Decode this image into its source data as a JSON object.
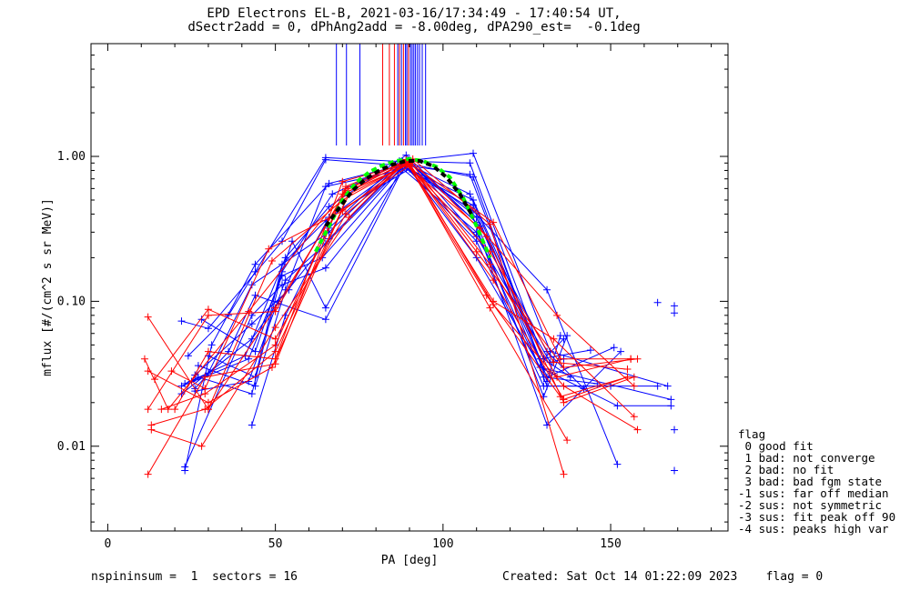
{
  "title_line1": "EPD Electrons EL-B, 2021-03-16/17:34:49 - 17:40:54 UT,",
  "title_line2": "dSectr2add = 0, dPhAng2add = -8.00deg, dPA290_est=  -0.1deg",
  "footer": {
    "left": "nspininsum =  1  sectors = 16",
    "right": "Created: Sat Oct 14 01:22:09 2023    flag = 0"
  },
  "legend": {
    "title": "flag",
    "items": [
      " 0 good fit",
      " 1 bad: not converge",
      " 2 bad: no fit",
      " 3 bad: bad fgm state",
      "-1 sus: far off median",
      "-2 sus: not symmetric",
      "-3 sus: fit peak off 90",
      "-4 sus: peaks high var"
    ]
  },
  "colors": {
    "blue": "#0000ff",
    "red": "#ff0000",
    "green": "#00ff00",
    "black": "#000000"
  },
  "chart_data": {
    "type": "line",
    "title": "EPD Electrons EL-B, 2021-03-16/17:34:49 - 17:40:54 UT,",
    "xlabel": "PA [deg]",
    "ylabel": "mflux [#/(cm^2 s sr MeV)]",
    "xlim": [
      -5,
      185
    ],
    "ylim": [
      0.0026,
      6
    ],
    "yscale": "log",
    "xticks": [
      0,
      50,
      100,
      150
    ],
    "yticks": [
      {
        "v": 0.01,
        "label": "0.01"
      },
      {
        "v": 0.1,
        "label": "0.10"
      },
      {
        "v": 1.0,
        "label": "1.00"
      }
    ],
    "vertical_markers": [
      {
        "x": 68.2,
        "color": "blue"
      },
      {
        "x": 71.2,
        "color": "blue"
      },
      {
        "x": 75.2,
        "color": "blue"
      },
      {
        "x": 82.0,
        "color": "red"
      },
      {
        "x": 84.0,
        "color": "red"
      },
      {
        "x": 85.5,
        "color": "red"
      },
      {
        "x": 86.5,
        "color": "blue"
      },
      {
        "x": 87.0,
        "color": "red"
      },
      {
        "x": 87.6,
        "color": "blue"
      },
      {
        "x": 88.2,
        "color": "red"
      },
      {
        "x": 88.8,
        "color": "blue"
      },
      {
        "x": 89.2,
        "color": "blue"
      },
      {
        "x": 89.7,
        "color": "red"
      },
      {
        "x": 90.3,
        "color": "blue"
      },
      {
        "x": 90.8,
        "color": "blue"
      },
      {
        "x": 91.3,
        "color": "blue"
      },
      {
        "x": 91.8,
        "color": "blue"
      },
      {
        "x": 92.4,
        "color": "blue"
      },
      {
        "x": 93.0,
        "color": "blue"
      },
      {
        "x": 93.8,
        "color": "blue"
      },
      {
        "x": 94.8,
        "color": "blue"
      }
    ],
    "series": [
      {
        "color": "blue",
        "points": [
          [
            22,
            0.073
          ],
          [
            30,
            0.065
          ],
          [
            52,
            0.26
          ],
          [
            65,
            0.95
          ],
          [
            89,
            0.86
          ],
          [
            109,
            0.42
          ],
          [
            131,
            0.12
          ],
          [
            152,
            0.0075
          ]
        ]
      },
      {
        "color": "blue",
        "points": [
          [
            23,
            0.0068
          ],
          [
            31,
            0.05
          ],
          [
            44,
            0.18
          ],
          [
            66,
            0.65
          ],
          [
            90,
            0.9
          ],
          [
            110,
            0.38
          ],
          [
            131,
            0.03
          ],
          [
            151,
            0.048
          ]
        ]
      },
      {
        "color": "blue",
        "points": [
          [
            24,
            0.042
          ],
          [
            36,
            0.08
          ],
          [
            44,
            0.16
          ],
          [
            65,
            0.98
          ],
          [
            88,
            0.92
          ],
          [
            108,
            0.55
          ],
          [
            129,
            0.04
          ],
          [
            144,
            0.046
          ]
        ]
      },
      {
        "color": "blue",
        "points": [
          [
            25,
            0.028
          ],
          [
            30,
            0.032
          ],
          [
            43,
            0.13
          ],
          [
            66,
            0.3
          ],
          [
            87,
            0.88
          ],
          [
            108,
            0.75
          ],
          [
            130,
            0.034
          ],
          [
            152,
            0.019
          ],
          [
            168,
            0.019
          ]
        ]
      },
      {
        "color": "blue",
        "points": [
          [
            26,
            0.025
          ],
          [
            36,
            0.045
          ],
          [
            44,
            0.11
          ],
          [
            65,
            0.075
          ],
          [
            88,
            0.82
          ],
          [
            110,
            0.3
          ],
          [
            130,
            0.03
          ],
          [
            146,
            0.027
          ]
        ]
      },
      {
        "color": "blue",
        "points": [
          [
            27,
            0.03
          ],
          [
            43,
            0.023
          ],
          [
            52,
            0.16
          ],
          [
            67,
            0.55
          ],
          [
            90,
            0.95
          ],
          [
            110,
            0.28
          ],
          [
            132,
            0.038
          ],
          [
            136,
            0.04
          ]
        ]
      },
      {
        "color": "blue",
        "points": [
          [
            23,
            0.027
          ],
          [
            41,
            0.042
          ],
          [
            53,
            0.2
          ],
          [
            66,
            0.45
          ],
          [
            89,
            1.02
          ],
          [
            111,
            0.33
          ],
          [
            131,
            0.045
          ],
          [
            142,
            0.025
          ]
        ]
      },
      {
        "color": "blue",
        "points": [
          [
            28,
            0.075
          ],
          [
            44,
            0.045
          ],
          [
            55,
            0.26
          ],
          [
            65,
            0.09
          ],
          [
            88,
            0.86
          ],
          [
            109,
            0.5
          ],
          [
            130,
            0.04
          ],
          [
            136,
            0.055
          ]
        ]
      },
      {
        "color": "blue",
        "points": [
          [
            22,
            0.026
          ],
          [
            42,
            0.04
          ],
          [
            52,
            0.15
          ],
          [
            64,
            0.2
          ],
          [
            89,
            0.9
          ],
          [
            109,
            0.72
          ],
          [
            131,
            0.028
          ],
          [
            135,
            0.058
          ]
        ]
      },
      {
        "color": "blue",
        "points": [
          [
            26,
            0.024
          ],
          [
            42,
            0.028
          ],
          [
            53,
            0.14
          ],
          [
            65,
            0.25
          ],
          [
            88,
            0.85
          ],
          [
            108,
            0.44
          ],
          [
            131,
            0.014
          ],
          [
            153,
            0.045
          ]
        ]
      },
      {
        "color": "blue",
        "points": [
          [
            23,
            0.0072
          ],
          [
            43,
            0.08
          ],
          [
            52,
            0.13
          ],
          [
            65,
            0.17
          ],
          [
            90,
            0.9
          ],
          [
            110,
            0.35
          ],
          [
            130,
            0.022
          ],
          [
            137,
            0.058
          ]
        ]
      },
      {
        "color": "blue",
        "points": [
          [
            27,
            0.036
          ],
          [
            44,
            0.026
          ],
          [
            53,
            0.12
          ],
          [
            65,
            0.62
          ],
          [
            89,
            0.82
          ],
          [
            109,
            0.46
          ],
          [
            131,
            0.026
          ],
          [
            164,
            0.026
          ]
        ]
      },
      {
        "color": "blue",
        "points": [
          [
            22,
            0.023
          ],
          [
            43,
            0.055
          ],
          [
            51,
            0.1
          ],
          [
            66,
            0.27
          ],
          [
            89,
            0.93
          ],
          [
            109,
            1.05
          ],
          [
            132,
            0.045
          ],
          [
            167,
            0.026
          ]
        ]
      },
      {
        "color": "blue",
        "points": [
          [
            43,
            0.014
          ],
          [
            53,
            0.08
          ],
          [
            66,
            0.32
          ],
          [
            87,
            0.93
          ],
          [
            108,
            0.9
          ],
          [
            130,
            0.04
          ],
          [
            138,
            0.03
          ]
        ]
      },
      {
        "color": "blue",
        "points": [
          [
            26,
            0.031
          ],
          [
            43,
            0.07
          ],
          [
            54,
            0.12
          ],
          [
            66,
            0.38
          ],
          [
            90,
            0.82
          ],
          [
            110,
            0.2
          ],
          [
            129,
            0.035
          ],
          [
            168,
            0.021
          ]
        ]
      },
      {
        "color": "blue",
        "points": [
          [
            30,
            0.042
          ],
          [
            44,
            0.03
          ],
          [
            52,
            0.18
          ],
          [
            65,
            0.36
          ],
          [
            88,
            0.89
          ],
          [
            110,
            0.26
          ],
          [
            130,
            0.026
          ],
          [
            150,
            0.026
          ]
        ]
      },
      {
        "color": "red",
        "points": [
          [
            12,
            0.078
          ],
          [
            30,
            0.018
          ],
          [
            49,
            0.19
          ],
          [
            70,
            0.5
          ],
          [
            89,
            0.87
          ],
          [
            111,
            0.32
          ],
          [
            134,
            0.08
          ],
          [
            157,
            0.026
          ]
        ]
      },
      {
        "color": "red",
        "points": [
          [
            11,
            0.04
          ],
          [
            18,
            0.018
          ],
          [
            42,
            0.085
          ],
          [
            70,
            0.55
          ],
          [
            90,
            0.88
          ],
          [
            110,
            0.22
          ],
          [
            136,
            0.035
          ],
          [
            158,
            0.04
          ]
        ]
      },
      {
        "color": "red",
        "points": [
          [
            12,
            0.0064
          ],
          [
            29,
            0.03
          ],
          [
            50,
            0.037
          ],
          [
            71,
            0.62
          ],
          [
            91,
            0.96
          ],
          [
            114,
            0.34
          ],
          [
            136,
            0.0064
          ]
        ]
      },
      {
        "color": "red",
        "points": [
          [
            12,
            0.033
          ],
          [
            30,
            0.02
          ],
          [
            49,
            0.035
          ],
          [
            70,
            0.43
          ],
          [
            90,
            0.86
          ],
          [
            115,
            0.1
          ],
          [
            133,
            0.055
          ],
          [
            157,
            0.016
          ]
        ]
      },
      {
        "color": "red",
        "points": [
          [
            13,
            0.014
          ],
          [
            29,
            0.018
          ],
          [
            50,
            0.045
          ],
          [
            72,
            0.55
          ],
          [
            90,
            0.9
          ],
          [
            115,
            0.095
          ],
          [
            136,
            0.026
          ],
          [
            158,
            0.013
          ]
        ]
      },
      {
        "color": "red",
        "points": [
          [
            14,
            0.029
          ],
          [
            30,
            0.088
          ],
          [
            50,
            0.055
          ],
          [
            71,
            0.4
          ],
          [
            89,
            0.9
          ],
          [
            114,
            0.22
          ],
          [
            133,
            0.038
          ],
          [
            155,
            0.034
          ]
        ]
      },
      {
        "color": "red",
        "points": [
          [
            16,
            0.018
          ],
          [
            29,
            0.023
          ],
          [
            50,
            0.05
          ],
          [
            71,
            0.6
          ],
          [
            90,
            0.9
          ],
          [
            115,
            0.35
          ],
          [
            135,
            0.04
          ],
          [
            156,
            0.04
          ]
        ]
      },
      {
        "color": "red",
        "points": [
          [
            13,
            0.013
          ],
          [
            28,
            0.01
          ],
          [
            50,
            0.066
          ],
          [
            72,
            0.38
          ],
          [
            89,
            0.95
          ],
          [
            114,
            0.09
          ],
          [
            137,
            0.011
          ]
        ]
      },
      {
        "color": "red",
        "points": [
          [
            20,
            0.018
          ],
          [
            30,
            0.045
          ],
          [
            50,
            0.04
          ],
          [
            70,
            0.67
          ],
          [
            91,
            0.92
          ],
          [
            113,
            0.28
          ],
          [
            136,
            0.02
          ],
          [
            157,
            0.03
          ]
        ]
      },
      {
        "color": "red",
        "points": [
          [
            30,
            0.018
          ],
          [
            50,
            0.09
          ],
          [
            71,
            0.56
          ],
          [
            89,
            0.92
          ],
          [
            113,
            0.11
          ],
          [
            135,
            0.022
          ],
          [
            155,
            0.03
          ]
        ]
      },
      {
        "color": "red",
        "points": [
          [
            19,
            0.033
          ],
          [
            29,
            0.025
          ],
          [
            48,
            0.23
          ],
          [
            70,
            0.42
          ],
          [
            90,
            0.93
          ],
          [
            114,
            0.18
          ],
          [
            134,
            0.03
          ],
          [
            156,
            0.04
          ]
        ]
      },
      {
        "color": "red",
        "points": [
          [
            12,
            0.018
          ],
          [
            30,
            0.08
          ],
          [
            50,
            0.085
          ],
          [
            71,
            0.58
          ],
          [
            89,
            0.95
          ],
          [
            115,
            0.14
          ],
          [
            136,
            0.021
          ],
          [
            155,
            0.03
          ]
        ]
      }
    ],
    "isolated_points": [
      {
        "color": "blue",
        "points": [
          [
            164,
            0.098
          ],
          [
            169,
            0.093
          ],
          [
            169,
            0.083
          ],
          [
            169,
            0.013
          ],
          [
            169,
            0.0068
          ]
        ]
      }
    ],
    "fit_curves": [
      {
        "color": "green",
        "style": "dashed",
        "points": [
          [
            62,
            0.22
          ],
          [
            66,
            0.33
          ],
          [
            70,
            0.5
          ],
          [
            74,
            0.66
          ],
          [
            78,
            0.78
          ],
          [
            82,
            0.87
          ],
          [
            86,
            0.93
          ],
          [
            90,
            0.96
          ],
          [
            94,
            0.93
          ],
          [
            98,
            0.85
          ],
          [
            102,
            0.72
          ],
          [
            106,
            0.52
          ],
          [
            110,
            0.33
          ],
          [
            114,
            0.2
          ]
        ]
      },
      {
        "color": "black",
        "style": "dashed",
        "points": [
          [
            65,
            0.33
          ],
          [
            69,
            0.44
          ],
          [
            73,
            0.58
          ],
          [
            77,
            0.7
          ],
          [
            81,
            0.8
          ],
          [
            85,
            0.88
          ],
          [
            89,
            0.93
          ],
          [
            93,
            0.93
          ],
          [
            97,
            0.86
          ],
          [
            101,
            0.72
          ],
          [
            105,
            0.55
          ],
          [
            109,
            0.38
          ]
        ]
      }
    ]
  }
}
